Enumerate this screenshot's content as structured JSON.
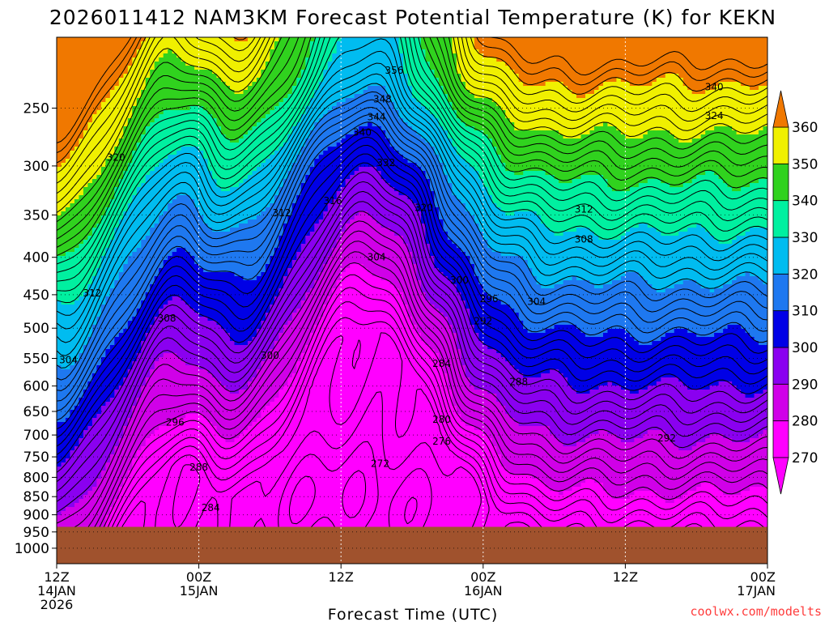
{
  "chart_data": {
    "type": "heatmap",
    "title": "2026011412 NAM3KM Forecast Potential Temperature (K) for KEKN",
    "xlabel": "Forecast Time (UTC)",
    "ylabel": "",
    "x_ticks": [
      {
        "hour": 0,
        "lines": [
          "12Z",
          "14JAN",
          "2026"
        ]
      },
      {
        "hour": 12,
        "lines": [
          "00Z",
          "15JAN"
        ]
      },
      {
        "hour": 24,
        "lines": [
          "12Z"
        ]
      },
      {
        "hour": 36,
        "lines": [
          "00Z",
          "16JAN"
        ]
      },
      {
        "hour": 48,
        "lines": [
          "12Z"
        ]
      },
      {
        "hour": 60,
        "lines": [
          "00Z",
          "17JAN"
        ]
      }
    ],
    "xlim": [
      0,
      60
    ],
    "y_ticks": [
      250,
      300,
      350,
      400,
      450,
      500,
      550,
      600,
      650,
      700,
      750,
      800,
      850,
      900,
      950,
      1000
    ],
    "ylim": [
      1050,
      200
    ],
    "y_scale": "log-pressure",
    "grid": "dotted at ticks",
    "colorbar": {
      "levels": [
        270,
        280,
        290,
        300,
        310,
        320,
        330,
        340,
        350,
        360
      ],
      "colors": [
        "#ff00ff",
        "#d000e8",
        "#8a00f0",
        "#0000e6",
        "#1e78f0",
        "#00bcf0",
        "#00f0a0",
        "#30d21e",
        "#f0f000",
        "#f0a000"
      ],
      "min_color": "#ff00ff",
      "max_color": "#f07800"
    },
    "contour_interval": 2,
    "ground": {
      "color": "#a0522d",
      "surface_pressure": 935
    },
    "contour_labels": [
      {
        "text": "356",
        "hour": 28.5,
        "p": 222
      },
      {
        "text": "348",
        "hour": 27.5,
        "p": 243
      },
      {
        "text": "344",
        "hour": 27.0,
        "p": 257
      },
      {
        "text": "340",
        "hour": 25.8,
        "p": 270
      },
      {
        "text": "340",
        "hour": 55.5,
        "p": 234
      },
      {
        "text": "332",
        "hour": 27.8,
        "p": 297
      },
      {
        "text": "324",
        "hour": 55.5,
        "p": 256
      },
      {
        "text": "320",
        "hour": 5.0,
        "p": 292
      },
      {
        "text": "320",
        "hour": 31.0,
        "p": 342
      },
      {
        "text": "316",
        "hour": 23.3,
        "p": 335
      },
      {
        "text": "312",
        "hour": 19.0,
        "p": 348
      },
      {
        "text": "312",
        "hour": 44.5,
        "p": 344
      },
      {
        "text": "312",
        "hour": 3.0,
        "p": 448
      },
      {
        "text": "308",
        "hour": 44.5,
        "p": 378
      },
      {
        "text": "308",
        "hour": 9.3,
        "p": 485
      },
      {
        "text": "304",
        "hour": 27.0,
        "p": 400
      },
      {
        "text": "304",
        "hour": 40.5,
        "p": 460
      },
      {
        "text": "304",
        "hour": 1.0,
        "p": 553
      },
      {
        "text": "300",
        "hour": 34.0,
        "p": 430
      },
      {
        "text": "300",
        "hour": 18.0,
        "p": 545
      },
      {
        "text": "296",
        "hour": 36.5,
        "p": 456
      },
      {
        "text": "296",
        "hour": 10.0,
        "p": 673
      },
      {
        "text": "292",
        "hour": 36.0,
        "p": 489
      },
      {
        "text": "292",
        "hour": 51.5,
        "p": 707
      },
      {
        "text": "288",
        "hour": 39.0,
        "p": 592
      },
      {
        "text": "288",
        "hour": 12.0,
        "p": 775
      },
      {
        "text": "284",
        "hour": 32.5,
        "p": 559
      },
      {
        "text": "284",
        "hour": 13.0,
        "p": 880
      },
      {
        "text": "280",
        "hour": 32.5,
        "p": 667
      },
      {
        "text": "276",
        "hour": 32.5,
        "p": 714
      },
      {
        "text": "272",
        "hour": 27.3,
        "p": 766
      }
    ]
  },
  "footer": {
    "credit": "coolwx.com/modelts"
  }
}
